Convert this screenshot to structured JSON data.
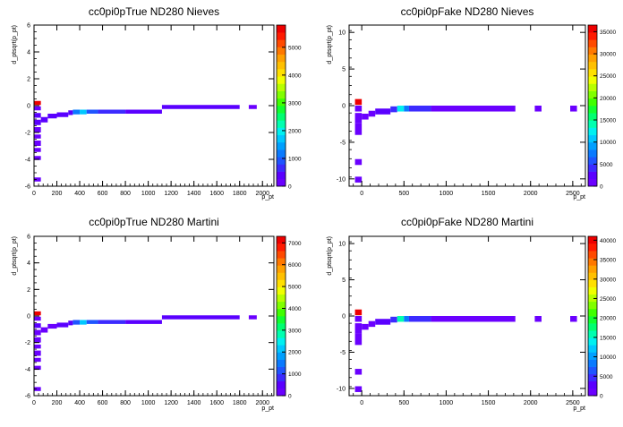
{
  "chart_data": [
    {
      "type": "heatmap",
      "title": "cc0pi0pTrue ND280 Nieves",
      "xlabel": "p_pt",
      "ylabel": "d_ptsqrt(p_pt)",
      "xlim": [
        0,
        2100
      ],
      "ylim": [
        -6,
        6
      ],
      "xticks": [
        0,
        200,
        400,
        600,
        800,
        1000,
        1200,
        1400,
        1600,
        1800,
        2000
      ],
      "yticks": [
        -6,
        -4,
        -2,
        0,
        2,
        4,
        6
      ],
      "zlim": [
        0,
        5800
      ],
      "zticks": [
        0,
        1000,
        2000,
        3000,
        4000,
        5000
      ],
      "cells": [
        {
          "x0": 0,
          "x1": 60,
          "y0": 0.05,
          "y1": 0.35,
          "v": 5600
        },
        {
          "x0": 0,
          "x1": 60,
          "y0": -0.35,
          "y1": -0.05,
          "v": 150
        },
        {
          "x0": 0,
          "x1": 60,
          "y0": -0.9,
          "y1": -0.55,
          "v": 400
        },
        {
          "x0": 0,
          "x1": 60,
          "y0": -1.45,
          "y1": -1.05,
          "v": 300
        },
        {
          "x0": 0,
          "x1": 60,
          "y0": -2.0,
          "y1": -1.6,
          "v": 250
        },
        {
          "x0": 0,
          "x1": 60,
          "y0": -2.45,
          "y1": -2.15,
          "v": 200
        },
        {
          "x0": 0,
          "x1": 60,
          "y0": -3.0,
          "y1": -2.6,
          "v": 150
        },
        {
          "x0": 0,
          "x1": 60,
          "y0": -3.45,
          "y1": -3.15,
          "v": 120
        },
        {
          "x0": 0,
          "x1": 60,
          "y0": -4.05,
          "y1": -3.75,
          "v": 100
        },
        {
          "x0": 0,
          "x1": 60,
          "y0": -5.65,
          "y1": -5.35,
          "v": 80
        },
        {
          "x0": 60,
          "x1": 120,
          "y0": -1.25,
          "y1": -0.85,
          "v": 300
        },
        {
          "x0": 120,
          "x1": 200,
          "y0": -0.95,
          "y1": -0.6,
          "v": 300
        },
        {
          "x0": 200,
          "x1": 300,
          "y0": -0.85,
          "y1": -0.5,
          "v": 350
        },
        {
          "x0": 300,
          "x1": 340,
          "y0": -0.7,
          "y1": -0.35,
          "v": 400
        },
        {
          "x0": 340,
          "x1": 400,
          "y0": -0.65,
          "y1": -0.3,
          "v": 1200
        },
        {
          "x0": 400,
          "x1": 460,
          "y0": -0.65,
          "y1": -0.3,
          "v": 1800
        },
        {
          "x0": 460,
          "x1": 560,
          "y0": -0.6,
          "y1": -0.3,
          "v": 1000
        },
        {
          "x0": 560,
          "x1": 800,
          "y0": -0.6,
          "y1": -0.3,
          "v": 600
        },
        {
          "x0": 800,
          "x1": 1120,
          "y0": -0.6,
          "y1": -0.3,
          "v": 400
        },
        {
          "x0": 1120,
          "x1": 1800,
          "y0": -0.25,
          "y1": 0.05,
          "v": 300
        },
        {
          "x0": 1880,
          "x1": 1950,
          "y0": -0.25,
          "y1": 0.05,
          "v": 200
        }
      ]
    },
    {
      "type": "heatmap",
      "title": "cc0pi0pFake ND280 Nieves",
      "xlabel": "p_pt",
      "ylabel": "d_ptsqrt(p_pt)",
      "xlim": [
        -150,
        2650
      ],
      "ylim": [
        -11,
        11
      ],
      "xticks": [
        0,
        500,
        1000,
        1500,
        2000,
        2500
      ],
      "yticks": [
        -10,
        -5,
        0,
        5,
        10
      ],
      "zlim": [
        0,
        36500
      ],
      "zticks": [
        0,
        5000,
        10000,
        15000,
        20000,
        25000,
        30000,
        35000
      ],
      "cells": [
        {
          "x0": -80,
          "x1": 0,
          "y0": 0.1,
          "y1": 0.9,
          "v": 35000
        },
        {
          "x0": -80,
          "x1": 0,
          "y0": -0.8,
          "y1": 0.0,
          "v": 800
        },
        {
          "x0": -80,
          "x1": 0,
          "y0": -2.4,
          "y1": -1.0,
          "v": 1000
        },
        {
          "x0": -80,
          "x1": 0,
          "y0": -4.0,
          "y1": -2.4,
          "v": 1200
        },
        {
          "x0": -80,
          "x1": 0,
          "y0": -8.1,
          "y1": -7.3,
          "v": 600
        },
        {
          "x0": -80,
          "x1": 0,
          "y0": -10.5,
          "y1": -9.7,
          "v": 600
        },
        {
          "x0": 0,
          "x1": 80,
          "y0": -1.9,
          "y1": -1.1,
          "v": 1200
        },
        {
          "x0": 80,
          "x1": 160,
          "y0": -1.5,
          "y1": -0.7,
          "v": 1500
        },
        {
          "x0": 160,
          "x1": 340,
          "y0": -1.2,
          "y1": -0.4,
          "v": 2000
        },
        {
          "x0": 340,
          "x1": 420,
          "y0": -0.9,
          "y1": -0.1,
          "v": 4000
        },
        {
          "x0": 420,
          "x1": 500,
          "y0": -0.8,
          "y1": 0.0,
          "v": 13000
        },
        {
          "x0": 500,
          "x1": 560,
          "y0": -0.8,
          "y1": 0.0,
          "v": 8000
        },
        {
          "x0": 560,
          "x1": 820,
          "y0": -0.8,
          "y1": 0.0,
          "v": 3500
        },
        {
          "x0": 820,
          "x1": 1820,
          "y0": -0.8,
          "y1": 0.0,
          "v": 1200
        },
        {
          "x0": 2050,
          "x1": 2130,
          "y0": -0.8,
          "y1": 0.0,
          "v": 500
        },
        {
          "x0": 2470,
          "x1": 2550,
          "y0": -0.8,
          "y1": 0.0,
          "v": 400
        }
      ]
    },
    {
      "type": "heatmap",
      "title": "cc0pi0pTrue ND280 Martini",
      "xlabel": "p_pt",
      "ylabel": "d_ptsqrt(p_pt)",
      "xlim": [
        0,
        2100
      ],
      "ylim": [
        -6,
        6
      ],
      "xticks": [
        0,
        200,
        400,
        600,
        800,
        1000,
        1200,
        1400,
        1600,
        1800,
        2000
      ],
      "yticks": [
        -6,
        -4,
        -2,
        0,
        2,
        4,
        6
      ],
      "zlim": [
        0,
        7300
      ],
      "zticks": [
        0,
        1000,
        2000,
        3000,
        4000,
        5000,
        6000,
        7000
      ],
      "cells": [
        {
          "x0": 0,
          "x1": 60,
          "y0": 0.05,
          "y1": 0.35,
          "v": 7100
        },
        {
          "x0": 0,
          "x1": 60,
          "y0": -0.35,
          "y1": -0.05,
          "v": 150
        },
        {
          "x0": 0,
          "x1": 60,
          "y0": -0.9,
          "y1": -0.55,
          "v": 400
        },
        {
          "x0": 0,
          "x1": 60,
          "y0": -1.45,
          "y1": -1.05,
          "v": 300
        },
        {
          "x0": 0,
          "x1": 60,
          "y0": -2.0,
          "y1": -1.6,
          "v": 250
        },
        {
          "x0": 0,
          "x1": 60,
          "y0": -2.45,
          "y1": -2.15,
          "v": 200
        },
        {
          "x0": 0,
          "x1": 60,
          "y0": -3.0,
          "y1": -2.6,
          "v": 150
        },
        {
          "x0": 0,
          "x1": 60,
          "y0": -3.45,
          "y1": -3.15,
          "v": 120
        },
        {
          "x0": 0,
          "x1": 60,
          "y0": -4.05,
          "y1": -3.75,
          "v": 100
        },
        {
          "x0": 0,
          "x1": 60,
          "y0": -5.65,
          "y1": -5.35,
          "v": 80
        },
        {
          "x0": 60,
          "x1": 120,
          "y0": -1.25,
          "y1": -0.85,
          "v": 300
        },
        {
          "x0": 120,
          "x1": 200,
          "y0": -0.95,
          "y1": -0.6,
          "v": 300
        },
        {
          "x0": 200,
          "x1": 300,
          "y0": -0.85,
          "y1": -0.5,
          "v": 350
        },
        {
          "x0": 300,
          "x1": 340,
          "y0": -0.7,
          "y1": -0.35,
          "v": 500
        },
        {
          "x0": 340,
          "x1": 400,
          "y0": -0.65,
          "y1": -0.3,
          "v": 1300
        },
        {
          "x0": 400,
          "x1": 460,
          "y0": -0.65,
          "y1": -0.3,
          "v": 2000
        },
        {
          "x0": 460,
          "x1": 560,
          "y0": -0.6,
          "y1": -0.3,
          "v": 1100
        },
        {
          "x0": 560,
          "x1": 800,
          "y0": -0.6,
          "y1": -0.3,
          "v": 700
        },
        {
          "x0": 800,
          "x1": 1120,
          "y0": -0.6,
          "y1": -0.3,
          "v": 450
        },
        {
          "x0": 1120,
          "x1": 1800,
          "y0": -0.25,
          "y1": 0.05,
          "v": 350
        },
        {
          "x0": 1880,
          "x1": 1950,
          "y0": -0.25,
          "y1": 0.05,
          "v": 200
        }
      ]
    },
    {
      "type": "heatmap",
      "title": "cc0pi0pFake ND280 Martini",
      "xlabel": "p_pt",
      "ylabel": "d_ptsqrt(p_pt)",
      "xlim": [
        -150,
        2650
      ],
      "ylim": [
        -11,
        11
      ],
      "xticks": [
        0,
        500,
        1000,
        1500,
        2000,
        2500
      ],
      "yticks": [
        -10,
        -5,
        0,
        5,
        10
      ],
      "zlim": [
        0,
        41000
      ],
      "zticks": [
        0,
        5000,
        10000,
        15000,
        20000,
        25000,
        30000,
        35000,
        40000
      ],
      "cells": [
        {
          "x0": -80,
          "x1": 0,
          "y0": 0.1,
          "y1": 0.9,
          "v": 40000
        },
        {
          "x0": -80,
          "x1": 0,
          "y0": -0.8,
          "y1": 0.0,
          "v": 900
        },
        {
          "x0": -80,
          "x1": 0,
          "y0": -2.4,
          "y1": -1.0,
          "v": 1100
        },
        {
          "x0": -80,
          "x1": 0,
          "y0": -4.0,
          "y1": -2.4,
          "v": 1300
        },
        {
          "x0": -80,
          "x1": 0,
          "y0": -8.1,
          "y1": -7.3,
          "v": 700
        },
        {
          "x0": -80,
          "x1": 0,
          "y0": -10.5,
          "y1": -9.7,
          "v": 700
        },
        {
          "x0": 0,
          "x1": 80,
          "y0": -1.9,
          "y1": -1.1,
          "v": 1300
        },
        {
          "x0": 80,
          "x1": 160,
          "y0": -1.5,
          "y1": -0.7,
          "v": 1700
        },
        {
          "x0": 160,
          "x1": 340,
          "y0": -1.2,
          "y1": -0.4,
          "v": 2200
        },
        {
          "x0": 340,
          "x1": 420,
          "y0": -0.9,
          "y1": -0.1,
          "v": 4500
        },
        {
          "x0": 420,
          "x1": 500,
          "y0": -0.8,
          "y1": 0.0,
          "v": 15000
        },
        {
          "x0": 500,
          "x1": 560,
          "y0": -0.8,
          "y1": 0.0,
          "v": 9000
        },
        {
          "x0": 560,
          "x1": 820,
          "y0": -0.8,
          "y1": 0.0,
          "v": 4000
        },
        {
          "x0": 820,
          "x1": 1820,
          "y0": -0.8,
          "y1": 0.0,
          "v": 1400
        },
        {
          "x0": 2050,
          "x1": 2130,
          "y0": -0.8,
          "y1": 0.0,
          "v": 600
        },
        {
          "x0": 2470,
          "x1": 2550,
          "y0": -0.8,
          "y1": 0.0,
          "v": 500
        }
      ]
    }
  ],
  "palette": [
    "#6a00ff",
    "#5a00ff",
    "#3c2bff",
    "#1f55ff",
    "#0a7aff",
    "#00a0ff",
    "#00c8ff",
    "#00f0f0",
    "#00ffb0",
    "#00ff70",
    "#10ff30",
    "#40ff00",
    "#80ff00",
    "#b8ff00",
    "#f0ff00",
    "#ffe000",
    "#ffc000",
    "#ffa000",
    "#ff7800",
    "#ff4a00",
    "#ff1a00",
    "#ee0000"
  ]
}
